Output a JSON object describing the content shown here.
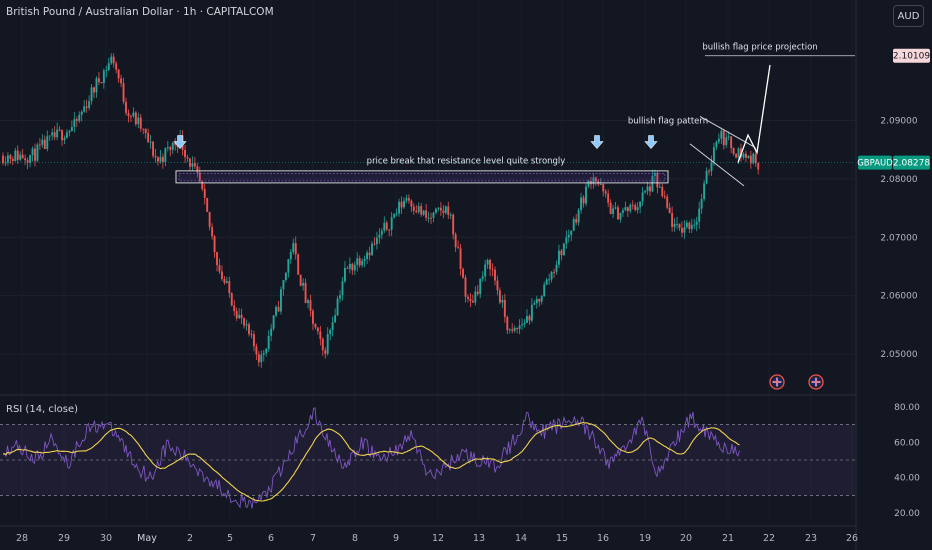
{
  "header": {
    "title": "British Pound / Australian Dollar · 1h · CAPITALCOM",
    "currency_button": "AUD"
  },
  "rsi": {
    "label": "RSI (14, close)",
    "ticks": [
      "80.00",
      "60.00",
      "40.00",
      "20.00"
    ]
  },
  "price_axis": {
    "ticks": [
      "2.09000",
      "2.08000",
      "2.07000",
      "2.06000",
      "2.05000"
    ],
    "target_label": "2.10109",
    "current_symbol": "GBPAUD",
    "current_value": "2.08278"
  },
  "time_axis": {
    "labels": [
      "28",
      "29",
      "30",
      "May",
      "2",
      "5",
      "6",
      "7",
      "8",
      "9",
      "12",
      "13",
      "14",
      "15",
      "16",
      "19",
      "20",
      "21",
      "22",
      "23",
      "26"
    ]
  },
  "annotations": {
    "resistance_text": "price break that resistance level quite strongly",
    "flag_text": "bullish flag pattern",
    "projection_text": "bullish flag price projection"
  },
  "colors": {
    "up": "#26a69a",
    "down": "#ef5350",
    "rsi_line": "#7e57c2",
    "rsi_ma": "#f0d24e",
    "background": "#131722",
    "current_badge": "#089981",
    "target_badge": "#f8d7da"
  },
  "chart_data": {
    "type": "candlestick",
    "symbol": "GBPAUD",
    "timeframe": "1h",
    "ylim": [
      2.0435,
      2.1055
    ],
    "last_close": 2.08278,
    "projection_target": 2.10109,
    "resistance_level": [
      2.08,
      2.0812
    ],
    "price_path": [
      [
        "28",
        2.084
      ],
      [
        "28",
        2.087
      ],
      [
        "29",
        2.089
      ],
      [
        "29",
        2.096
      ],
      [
        "30",
        2.101
      ],
      [
        "30",
        2.092
      ],
      [
        "30",
        2.089
      ],
      [
        "May",
        2.083
      ],
      [
        "May",
        2.087
      ],
      [
        "2",
        2.079
      ],
      [
        "2",
        2.064
      ],
      [
        "5",
        2.056
      ],
      [
        "5",
        2.049
      ],
      [
        "6",
        2.058
      ],
      [
        "6",
        2.069
      ],
      [
        "6",
        2.059
      ],
      [
        "7",
        2.05
      ],
      [
        "7",
        2.064
      ],
      [
        "8",
        2.069
      ],
      [
        "9",
        2.077
      ],
      [
        "9",
        2.073
      ],
      [
        "12",
        2.075
      ],
      [
        "12",
        2.058
      ],
      [
        "13",
        2.066
      ],
      [
        "13",
        2.053
      ],
      [
        "14",
        2.057
      ],
      [
        "14",
        2.064
      ],
      [
        "15",
        2.072
      ],
      [
        "15",
        2.081
      ],
      [
        "16",
        2.074
      ],
      [
        "16",
        2.075
      ],
      [
        "19",
        2.08
      ],
      [
        "19",
        2.071
      ],
      [
        "20",
        2.073
      ],
      [
        "20",
        2.088
      ],
      [
        "21",
        2.0845
      ],
      [
        "21",
        2.08278
      ]
    ],
    "projection_path": [
      [
        "21",
        2.08278
      ],
      [
        "21",
        2.0875
      ],
      [
        "22",
        2.0845
      ],
      [
        "22",
        2.0995
      ]
    ],
    "rsi": {
      "period": 14,
      "ylim": [
        15,
        85
      ],
      "bands": [
        70,
        50,
        30
      ],
      "values": [
        55,
        58,
        50,
        62,
        48,
        66,
        71,
        64,
        48,
        40,
        58,
        52,
        44,
        36,
        30,
        24,
        30,
        44,
        62,
        76,
        58,
        46,
        60,
        50,
        56,
        64,
        40,
        46,
        54,
        50,
        46,
        58,
        74,
        66,
        70,
        74,
        62,
        48,
        58,
        72,
        42,
        60,
        74,
        66,
        58,
        52
      ]
    }
  }
}
